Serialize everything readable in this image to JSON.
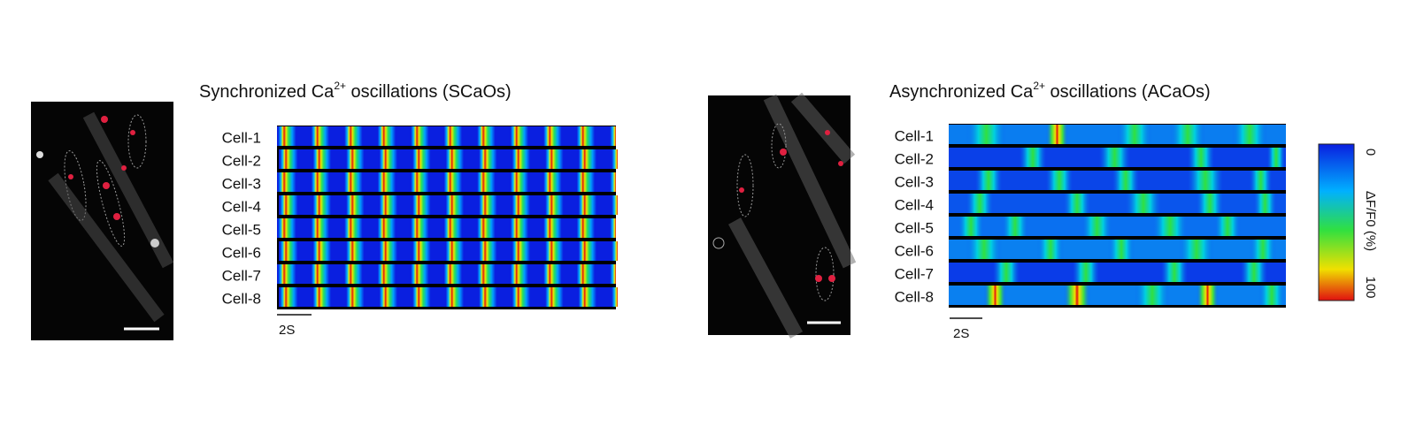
{
  "panels": [
    {
      "title": {
        "prefix": "Synchronized Ca",
        "superscript": "2+",
        "suffix": " oscillations (SCaOs)"
      },
      "rows": [
        "Cell-1",
        "Cell-2",
        "Cell-3",
        "Cell-4",
        "Cell-5",
        "Cell-6",
        "Cell-7",
        "Cell-8"
      ],
      "scale_bar": "2S"
    },
    {
      "title": {
        "prefix": "Asynchronized Ca",
        "superscript": "2+",
        "suffix": " oscillations (ACaOs)"
      },
      "rows": [
        "Cell-1",
        "Cell-2",
        "Cell-3",
        "Cell-4",
        "Cell-5",
        "Cell-6",
        "Cell-7",
        "Cell-8"
      ],
      "scale_bar": "2S"
    }
  ],
  "colorbar": {
    "min_label": "0",
    "label": "ΔF/F0 (%)",
    "max_label": "100"
  }
}
